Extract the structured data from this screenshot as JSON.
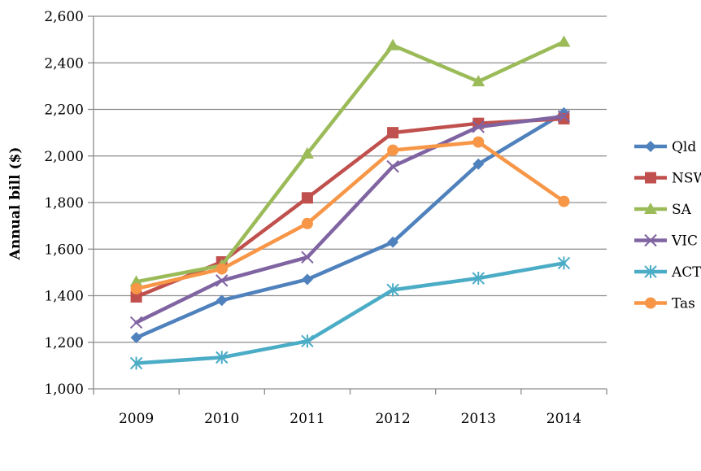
{
  "chart_data": {
    "type": "line",
    "ylabel": "Annual bill ($)",
    "xlabel": "",
    "x": [
      "2009",
      "2010",
      "2011",
      "2012",
      "2013",
      "2014"
    ],
    "ylim": [
      1000,
      2600
    ],
    "yticks": [
      1000,
      1200,
      1400,
      1600,
      1800,
      2000,
      2200,
      2400,
      2600
    ],
    "ytick_labels": [
      "1,000",
      "1,200",
      "1,400",
      "1,600",
      "1,800",
      "2,000",
      "2,200",
      "2,400",
      "2,600"
    ],
    "grid": "horizontal",
    "legend_position": "right",
    "series": [
      {
        "name": "Qld",
        "marker": "diamond",
        "color": "#4F81BD",
        "values": [
          1220,
          1380,
          1470,
          1630,
          1965,
          2185
        ]
      },
      {
        "name": "NSW",
        "marker": "square",
        "color": "#C0504D",
        "values": [
          1395,
          1545,
          1820,
          2100,
          2140,
          2160
        ]
      },
      {
        "name": "SA",
        "marker": "triangle",
        "color": "#9BBB59",
        "values": [
          1460,
          1530,
          2010,
          2475,
          2320,
          2490
        ]
      },
      {
        "name": "VIC",
        "marker": "x",
        "color": "#8064A2",
        "values": [
          1285,
          1465,
          1565,
          1955,
          2125,
          2170
        ]
      },
      {
        "name": "ACT",
        "marker": "star",
        "color": "#4BACC6",
        "values": [
          1110,
          1135,
          1205,
          1425,
          1475,
          1540
        ]
      },
      {
        "name": "Tas",
        "marker": "circle",
        "color": "#F79646",
        "values": [
          1430,
          1515,
          1710,
          2025,
          2060,
          1805
        ]
      }
    ]
  }
}
